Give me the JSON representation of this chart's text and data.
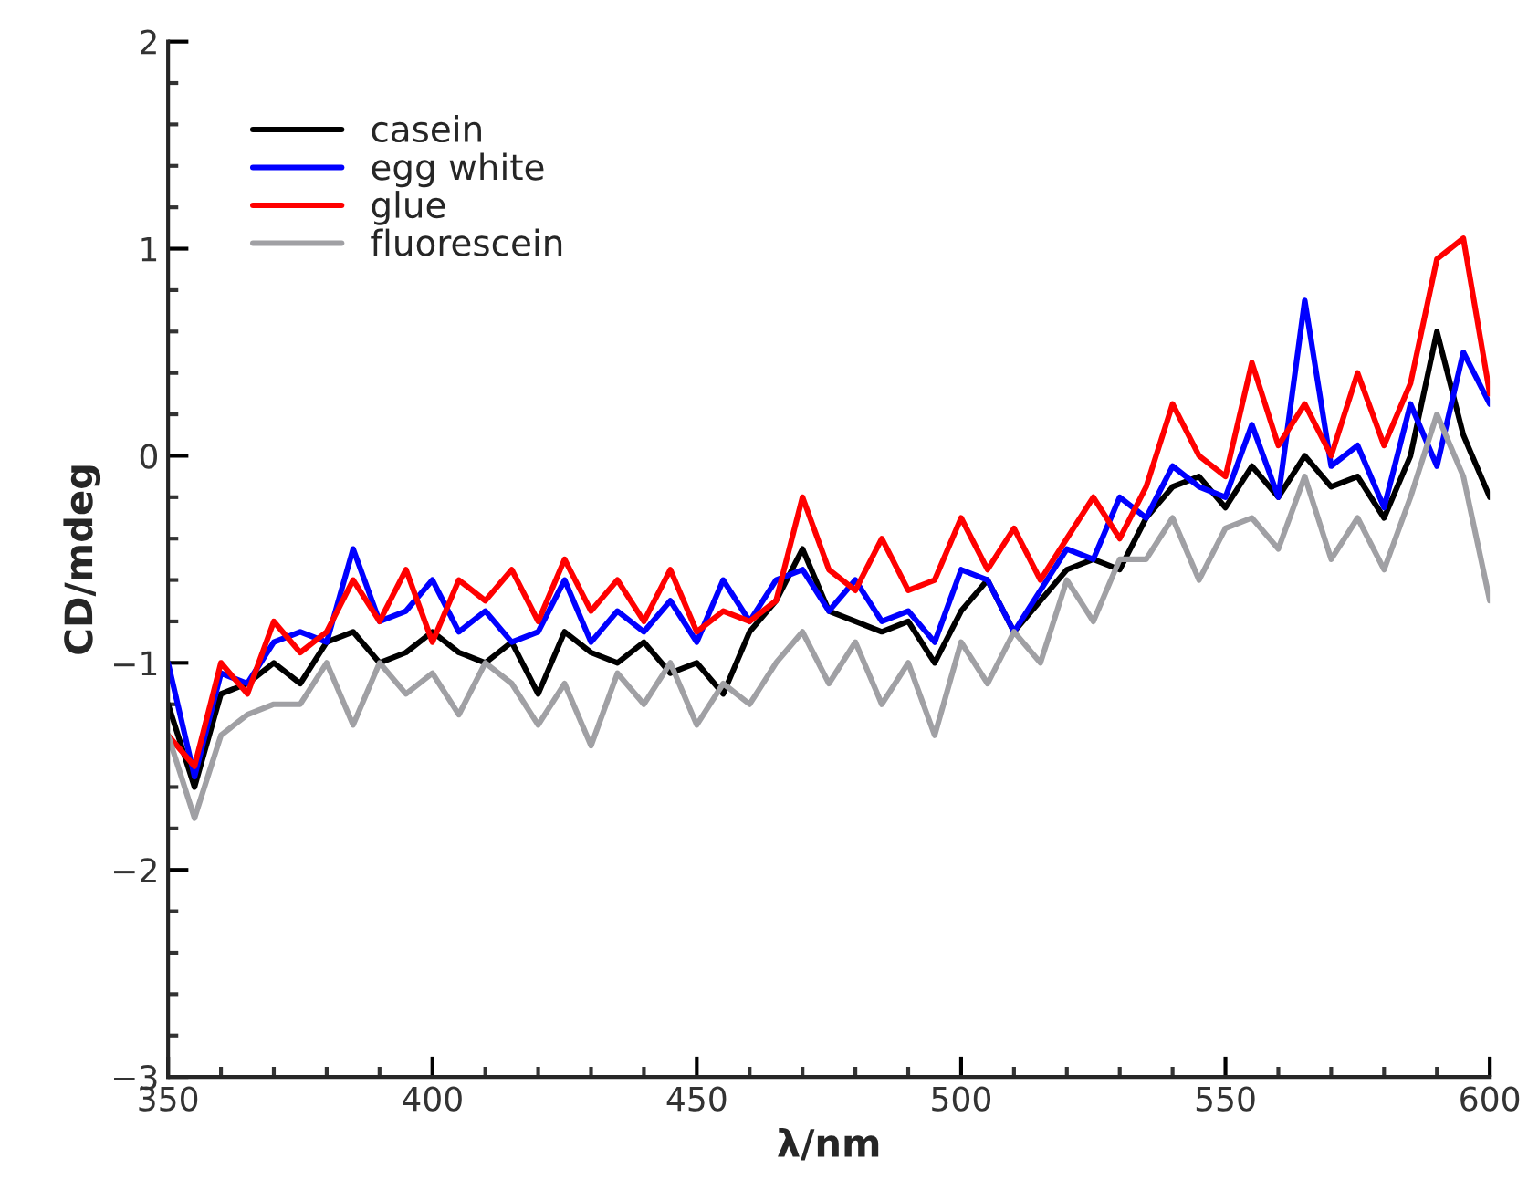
{
  "chart_data": {
    "type": "line",
    "xlabel": "λ/nm",
    "ylabel": "CD/mdeg",
    "x": [
      350,
      355,
      360,
      365,
      370,
      375,
      380,
      385,
      390,
      395,
      400,
      405,
      410,
      415,
      420,
      425,
      430,
      435,
      440,
      445,
      450,
      455,
      460,
      465,
      470,
      475,
      480,
      485,
      490,
      495,
      500,
      505,
      510,
      515,
      520,
      525,
      530,
      535,
      540,
      545,
      550,
      555,
      560,
      565,
      570,
      575,
      580,
      585,
      590,
      595,
      600
    ],
    "series": [
      {
        "name": "casein",
        "color": "#000000",
        "values": [
          -1.2,
          -1.6,
          -1.15,
          -1.1,
          -1.0,
          -1.1,
          -0.9,
          -0.85,
          -1.0,
          -0.95,
          -0.85,
          -0.95,
          -1.0,
          -0.9,
          -1.15,
          -0.85,
          -0.95,
          -1.0,
          -0.9,
          -1.05,
          -1.0,
          -1.15,
          -0.85,
          -0.7,
          -0.45,
          -0.75,
          -0.8,
          -0.85,
          -0.8,
          -1.0,
          -0.75,
          -0.6,
          -0.85,
          -0.7,
          -0.55,
          -0.5,
          -0.55,
          -0.3,
          -0.15,
          -0.1,
          -0.25,
          -0.05,
          -0.2,
          0.0,
          -0.15,
          -0.1,
          -0.3,
          0.0,
          0.6,
          0.1,
          -0.2
        ]
      },
      {
        "name": "egg white",
        "color": "#0000ff",
        "values": [
          -1.0,
          -1.55,
          -1.05,
          -1.1,
          -0.9,
          -0.85,
          -0.9,
          -0.45,
          -0.8,
          -0.75,
          -0.6,
          -0.85,
          -0.75,
          -0.9,
          -0.85,
          -0.6,
          -0.9,
          -0.75,
          -0.85,
          -0.7,
          -0.9,
          -0.6,
          -0.8,
          -0.6,
          -0.55,
          -0.75,
          -0.6,
          -0.8,
          -0.75,
          -0.9,
          -0.55,
          -0.6,
          -0.85,
          -0.65,
          -0.45,
          -0.5,
          -0.2,
          -0.3,
          -0.05,
          -0.15,
          -0.2,
          0.15,
          -0.2,
          0.75,
          -0.05,
          0.05,
          -0.25,
          0.25,
          -0.05,
          0.5,
          0.25
        ]
      },
      {
        "name": "glue",
        "color": "#ff0000",
        "values": [
          -1.35,
          -1.5,
          -1.0,
          -1.15,
          -0.8,
          -0.95,
          -0.85,
          -0.6,
          -0.8,
          -0.55,
          -0.9,
          -0.6,
          -0.7,
          -0.55,
          -0.8,
          -0.5,
          -0.75,
          -0.6,
          -0.8,
          -0.55,
          -0.85,
          -0.75,
          -0.8,
          -0.7,
          -0.2,
          -0.55,
          -0.65,
          -0.4,
          -0.65,
          -0.6,
          -0.3,
          -0.55,
          -0.35,
          -0.6,
          -0.4,
          -0.2,
          -0.4,
          -0.15,
          0.25,
          0.0,
          -0.1,
          0.45,
          0.05,
          0.25,
          0.0,
          0.4,
          0.05,
          0.35,
          0.95,
          1.05,
          0.3
        ]
      },
      {
        "name": "fluorescein",
        "color": "#a0a0a4",
        "values": [
          -1.35,
          -1.75,
          -1.35,
          -1.25,
          -1.2,
          -1.2,
          -1.0,
          -1.3,
          -1.0,
          -1.15,
          -1.05,
          -1.25,
          -1.0,
          -1.1,
          -1.3,
          -1.1,
          -1.4,
          -1.05,
          -1.2,
          -1.0,
          -1.3,
          -1.1,
          -1.2,
          -1.0,
          -0.85,
          -1.1,
          -0.9,
          -1.2,
          -1.0,
          -1.35,
          -0.9,
          -1.1,
          -0.85,
          -1.0,
          -0.6,
          -0.8,
          -0.5,
          -0.5,
          -0.3,
          -0.6,
          -0.35,
          -0.3,
          -0.45,
          -0.1,
          -0.5,
          -0.3,
          -0.55,
          -0.2,
          0.2,
          -0.1,
          -0.7
        ]
      }
    ],
    "xlim": [
      350,
      600
    ],
    "xticks": [
      350,
      400,
      450,
      500,
      550,
      600
    ],
    "ylim": [
      -3,
      2
    ],
    "yticks": [
      {
        "value": -3,
        "label": "−3"
      },
      {
        "value": -2,
        "label": "−2"
      },
      {
        "value": -1,
        "label": "−1"
      },
      0,
      1,
      2
    ],
    "legend": "top left",
    "grid": false
  }
}
